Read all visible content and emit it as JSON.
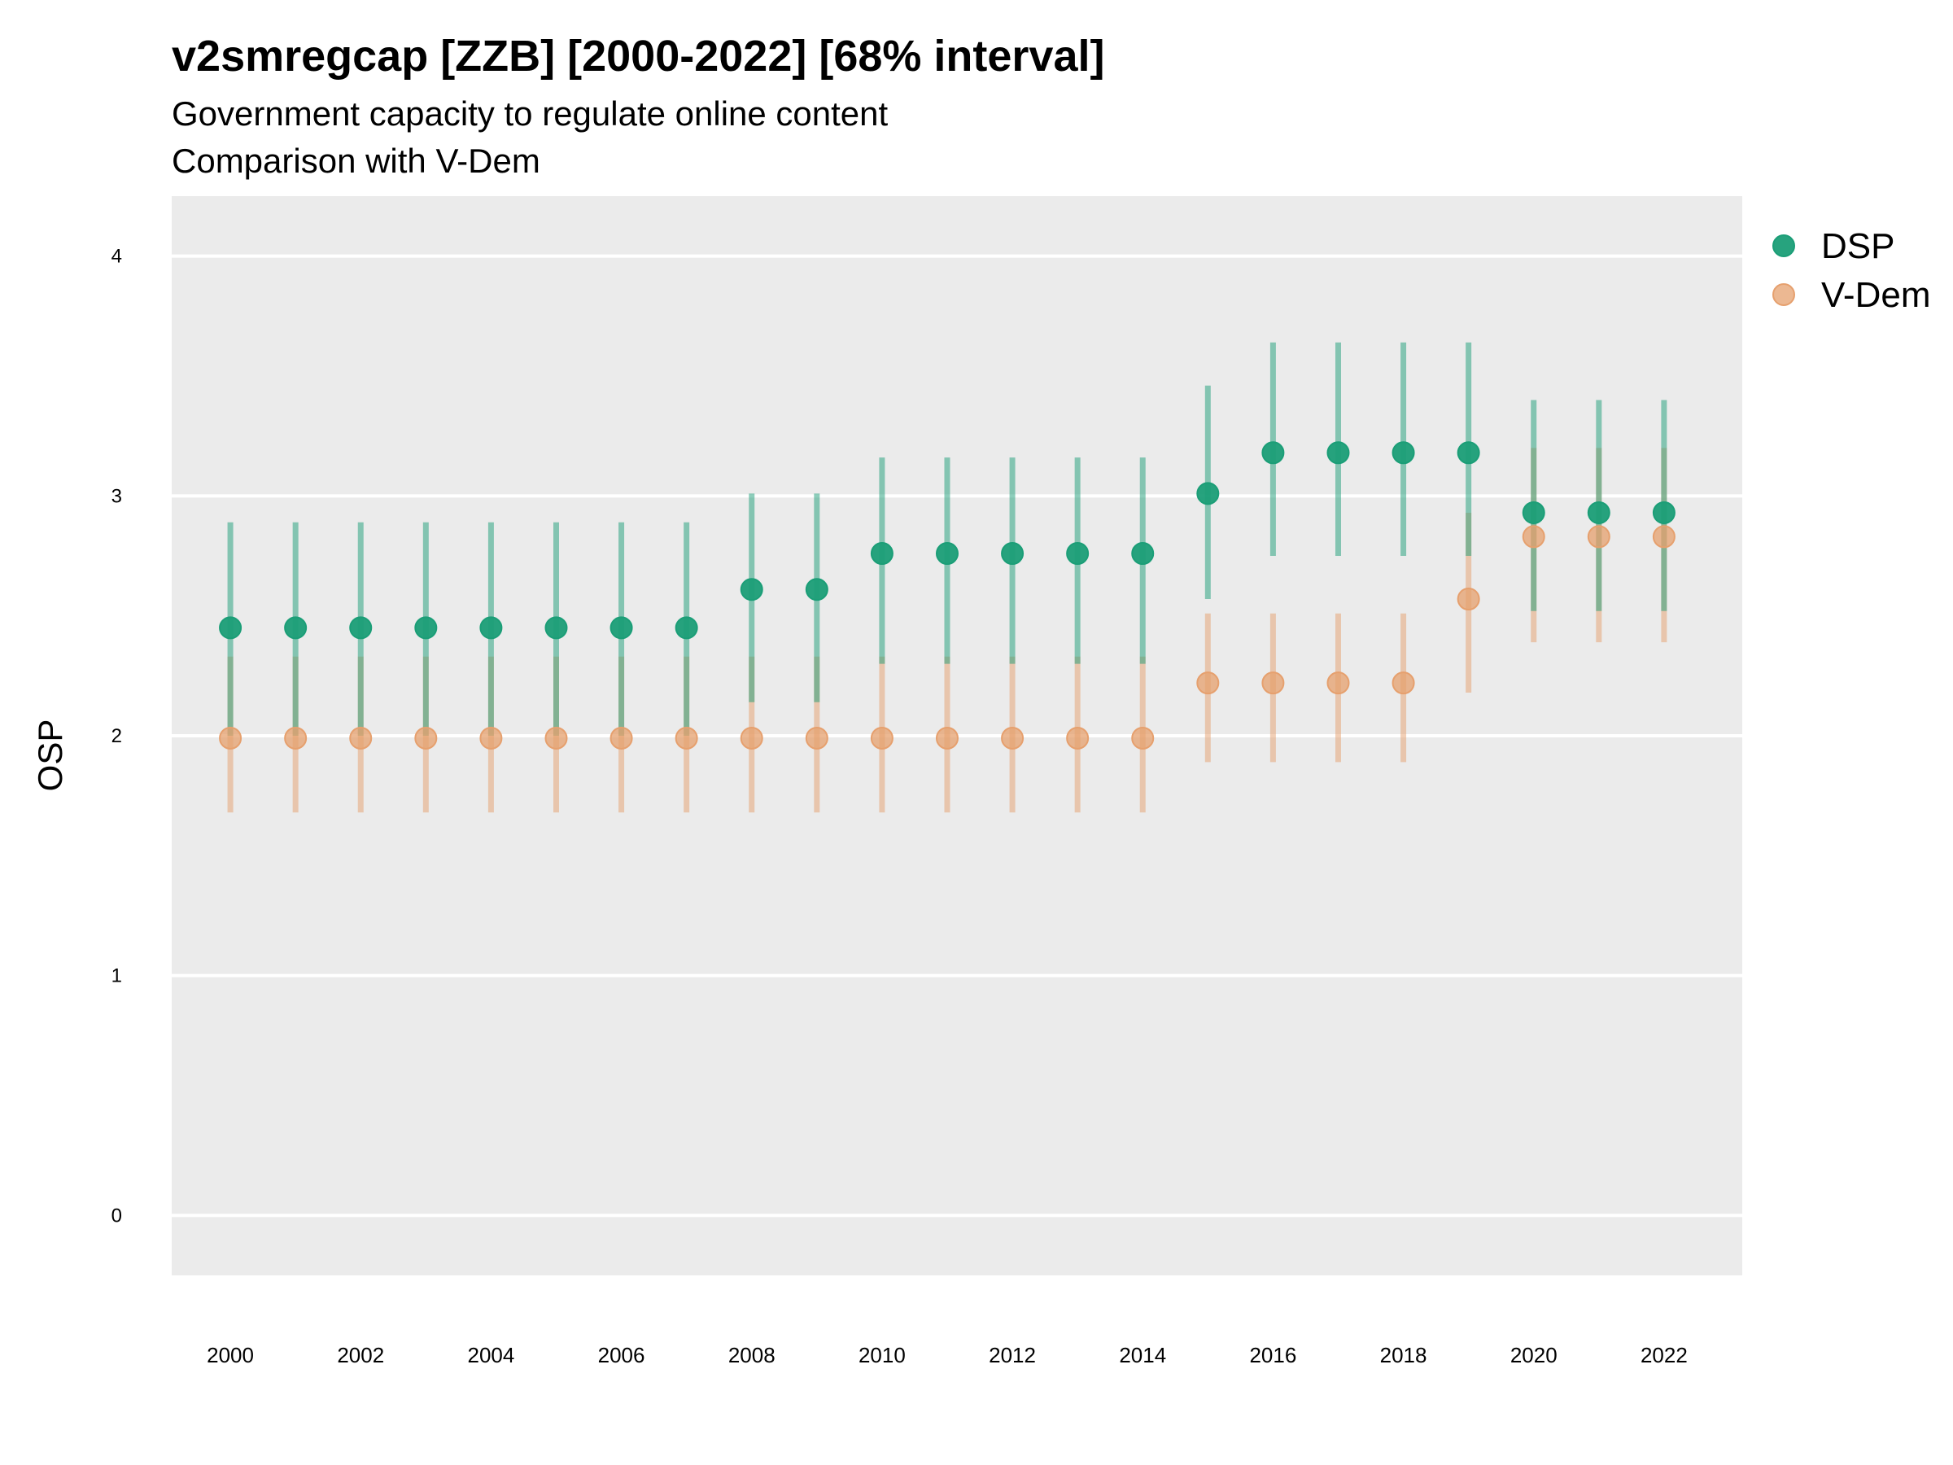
{
  "header": {
    "title": "v2smregcap [ZZB] [2000-2022] [68% interval]",
    "subtitle": "Government capacity to regulate online content",
    "subtitle2": "Comparison with V-Dem"
  },
  "colors": {
    "panel": "#ebebeb",
    "grid": "#ffffff",
    "dsp": "#1b9e77",
    "vdem": "#e6a06e"
  },
  "chart_data": {
    "type": "scatter",
    "x": [
      2000,
      2001,
      2002,
      2003,
      2004,
      2005,
      2006,
      2007,
      2008,
      2009,
      2010,
      2011,
      2012,
      2013,
      2014,
      2015,
      2016,
      2017,
      2018,
      2019,
      2020,
      2021,
      2022
    ],
    "x_tick_labels": [
      "2000",
      "2002",
      "2004",
      "2006",
      "2008",
      "2010",
      "2012",
      "2014",
      "2016",
      "2018",
      "2020",
      "2022"
    ],
    "x_ticks": [
      2000,
      2002,
      2004,
      2006,
      2008,
      2010,
      2012,
      2014,
      2016,
      2018,
      2020,
      2022
    ],
    "xlim": [
      1999.1,
      2023.2
    ],
    "ylabel": "OSP",
    "ylim": [
      -0.25,
      4.25
    ],
    "y_ticks": [
      0,
      1,
      2,
      3,
      4
    ],
    "y_tick_labels": [
      "0",
      "1",
      "2",
      "3",
      "4"
    ],
    "grid": true,
    "legend_position": "right",
    "series": [
      {
        "name": "DSP",
        "color": "#1b9e77",
        "values": [
          2.45,
          2.45,
          2.45,
          2.45,
          2.45,
          2.45,
          2.45,
          2.45,
          2.61,
          2.61,
          2.76,
          2.76,
          2.76,
          2.76,
          2.76,
          3.01,
          3.18,
          3.18,
          3.18,
          3.18,
          2.93,
          2.93,
          2.93
        ],
        "lower": [
          2.0,
          2.0,
          2.0,
          2.0,
          2.0,
          2.0,
          2.0,
          2.0,
          2.14,
          2.14,
          2.3,
          2.3,
          2.3,
          2.3,
          2.3,
          2.57,
          2.75,
          2.75,
          2.75,
          2.75,
          2.52,
          2.52,
          2.52
        ],
        "upper": [
          2.89,
          2.89,
          2.89,
          2.89,
          2.89,
          2.89,
          2.89,
          2.89,
          3.01,
          3.01,
          3.16,
          3.16,
          3.16,
          3.16,
          3.16,
          3.46,
          3.64,
          3.64,
          3.64,
          3.64,
          3.4,
          3.4,
          3.4
        ]
      },
      {
        "name": "V-Dem",
        "color": "#e6a06e",
        "values": [
          1.99,
          1.99,
          1.99,
          1.99,
          1.99,
          1.99,
          1.99,
          1.99,
          1.99,
          1.99,
          1.99,
          1.99,
          1.99,
          1.99,
          1.99,
          2.22,
          2.22,
          2.22,
          2.22,
          2.57,
          2.83,
          2.83,
          2.83
        ],
        "lower": [
          1.68,
          1.68,
          1.68,
          1.68,
          1.68,
          1.68,
          1.68,
          1.68,
          1.68,
          1.68,
          1.68,
          1.68,
          1.68,
          1.68,
          1.68,
          1.89,
          1.89,
          1.89,
          1.89,
          2.18,
          2.39,
          2.39,
          2.39
        ],
        "upper": [
          2.33,
          2.33,
          2.33,
          2.33,
          2.33,
          2.33,
          2.33,
          2.33,
          2.33,
          2.33,
          2.33,
          2.33,
          2.33,
          2.33,
          2.33,
          2.51,
          2.51,
          2.51,
          2.51,
          2.93,
          3.2,
          3.2,
          3.2
        ]
      }
    ]
  }
}
